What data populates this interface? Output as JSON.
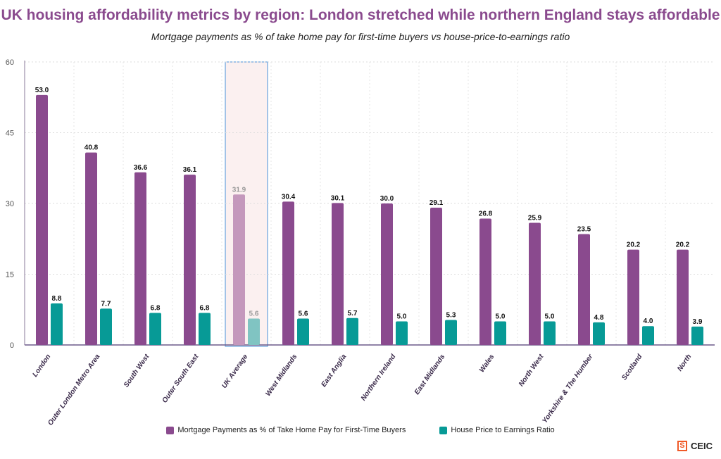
{
  "title": "UK housing affordability metrics by region: London stretched while northern England stays affordable",
  "subtitle": "Mortgage payments as % of take home pay for first-time buyers vs house-price-to-earnings ratio",
  "logo": "CEIC",
  "chart_data": {
    "type": "bar",
    "title": "UK housing affordability metrics by region: London stretched while northern England stays affordable",
    "categories": [
      "London",
      "Outer London Metro Area",
      "South West",
      "Outer South East",
      "UK Average",
      "West Midlands",
      "East Anglia",
      "Northern Ireland",
      "East Midlands",
      "Wales",
      "North West",
      "Yorkshire & The Humber",
      "Scotland",
      "North"
    ],
    "series": [
      {
        "name": "Mortgage Payments as % of Take Home Pay for First-Time Buyers",
        "color": "#8a4a8e",
        "highlight_color": "#c498bc",
        "values": [
          53.0,
          40.8,
          36.6,
          36.1,
          31.9,
          30.4,
          30.1,
          30.0,
          29.1,
          26.8,
          25.9,
          23.5,
          20.2,
          20.2
        ]
      },
      {
        "name": "House Price to Earnings Ratio",
        "color": "#079a96",
        "highlight_color": "#80c4c2",
        "values": [
          8.8,
          7.7,
          6.8,
          6.8,
          5.6,
          5.6,
          5.7,
          5.0,
          5.3,
          5.0,
          5.0,
          4.8,
          4.0,
          3.9
        ]
      }
    ],
    "highlighted_category": "UK Average",
    "yticks": [
      0,
      15,
      30,
      45,
      60
    ],
    "ylim": [
      0,
      60
    ],
    "grid": true,
    "legend": "bottom"
  }
}
